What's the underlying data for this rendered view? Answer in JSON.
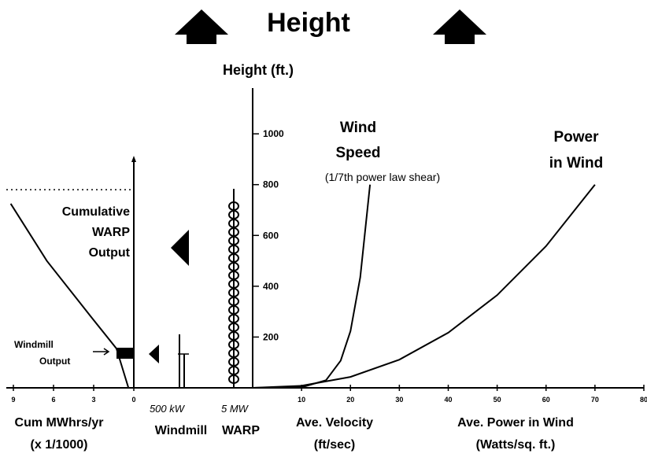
{
  "title": "Height",
  "height_axis": {
    "label": "Height (ft.)",
    "ylim": [
      0,
      1180
    ],
    "yticks": [
      200,
      400,
      600,
      800,
      1000
    ]
  },
  "velocity_axis": {
    "label": [
      "Ave. Velocity",
      "(ft/sec)"
    ],
    "xlim": [
      0,
      80
    ],
    "xticks": [
      10,
      20,
      30,
      40,
      50,
      60,
      70,
      80
    ]
  },
  "power_axis": {
    "label": [
      "Ave. Power in Wind",
      "(Watts/sq. ft.)"
    ]
  },
  "output_axis": {
    "label": [
      "Cum MWhrs/yr",
      "(x 1/1000)"
    ],
    "xticks": [
      9,
      6,
      3,
      0
    ]
  },
  "wind_speed": {
    "label": [
      "Wind",
      "Speed"
    ],
    "note": "(1/7th power law shear)",
    "x": [
      0,
      10,
      15,
      18,
      20,
      22,
      24
    ],
    "y": [
      0,
      2,
      30,
      107,
      223,
      435,
      800
    ]
  },
  "power_in_wind": {
    "label": [
      "Power",
      "in Wind"
    ],
    "x": [
      0,
      10,
      20,
      30,
      40,
      50,
      60,
      70
    ],
    "y": [
      0,
      8,
      43,
      111,
      217,
      365,
      558,
      800
    ]
  },
  "cumulative_output": {
    "label": [
      "Cumulative",
      "WARP",
      "Output"
    ],
    "x": [
      9.2,
      6.5,
      3.2,
      1.3,
      0.4
    ],
    "y": [
      725,
      500,
      280,
      155,
      0
    ],
    "max_height": 780
  },
  "windmill_output": {
    "label": [
      "Windmill",
      "Output"
    ]
  },
  "windmill": {
    "rating": "500 kW",
    "label": "Windmill"
  },
  "warp": {
    "rating": "5 MW",
    "label": "WARP"
  }
}
